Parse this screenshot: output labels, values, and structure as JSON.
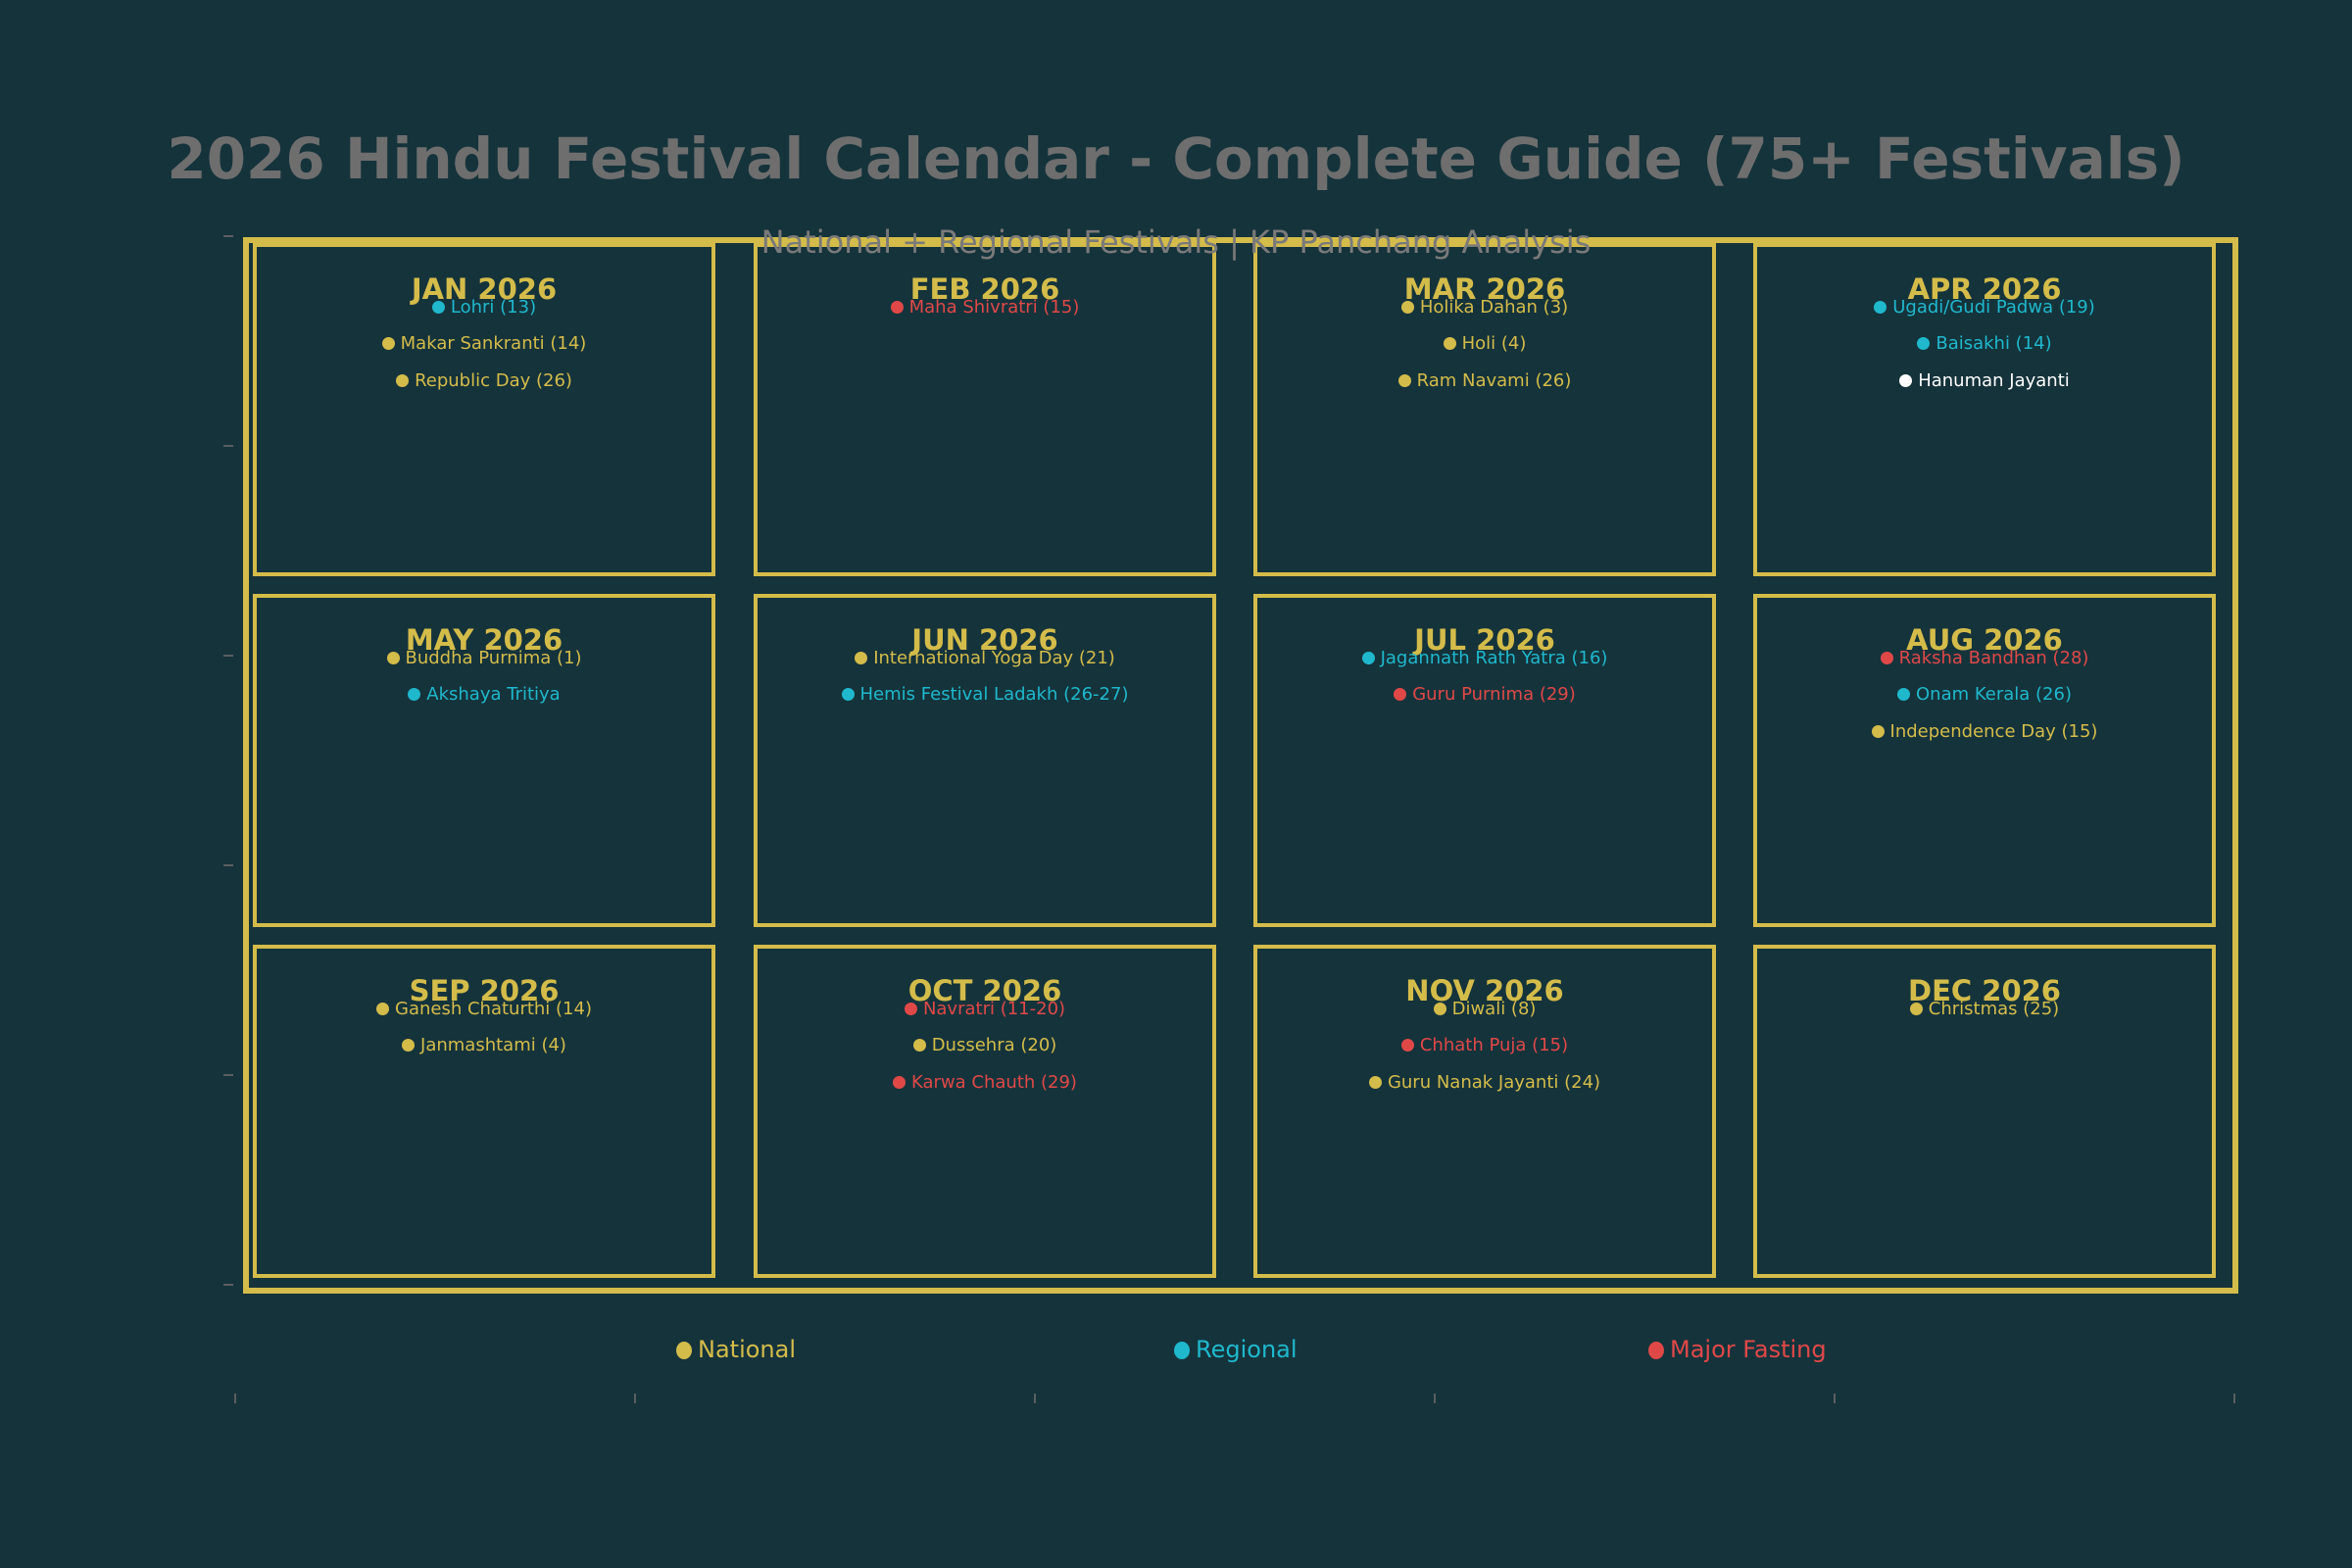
{
  "chart_data": {
    "type": "table",
    "title": "2026 Hindu Festival Calendar - Complete Guide (75+ Festivals)",
    "subtitle": "National + Regional Festivals | KP Panchang Analysis",
    "layout": {
      "rows": 3,
      "cols": 4,
      "grid": false,
      "legend_position": "bottom"
    },
    "colors": {
      "National": "#d4bc4a",
      "Regional": "#1fb8cc",
      "Major Fasting": "#e04848",
      "Other": "#ffffff"
    },
    "legend": [
      {
        "label": "National",
        "color": "#d4bc4a"
      },
      {
        "label": "Regional",
        "color": "#1fb8cc"
      },
      {
        "label": "Major Fasting",
        "color": "#e04848"
      }
    ],
    "months": [
      {
        "label": "JAN 2026",
        "festivals": [
          {
            "name": "Lohri (13)",
            "category": "Regional",
            "color": "#1fb8cc"
          },
          {
            "name": "Makar Sankranti (14)",
            "category": "National",
            "color": "#d4bc4a"
          },
          {
            "name": "Republic Day (26)",
            "category": "National",
            "color": "#d4bc4a"
          }
        ]
      },
      {
        "label": "FEB 2026",
        "festivals": [
          {
            "name": "Maha Shivratri (15)",
            "category": "Major Fasting",
            "color": "#e04848"
          }
        ]
      },
      {
        "label": "MAR 2026",
        "festivals": [
          {
            "name": "Holika Dahan (3)",
            "category": "National",
            "color": "#d4bc4a"
          },
          {
            "name": "Holi (4)",
            "category": "National",
            "color": "#d4bc4a"
          },
          {
            "name": "Ram Navami (26)",
            "category": "National",
            "color": "#d4bc4a"
          }
        ]
      },
      {
        "label": "APR 2026",
        "festivals": [
          {
            "name": "Ugadi/Gudi Padwa (19)",
            "category": "Regional",
            "color": "#1fb8cc"
          },
          {
            "name": "Baisakhi (14)",
            "category": "Regional",
            "color": "#1fb8cc"
          },
          {
            "name": "Hanuman Jayanti",
            "category": "Other",
            "color": "#ffffff"
          }
        ]
      },
      {
        "label": "MAY 2026",
        "festivals": [
          {
            "name": "Buddha Purnima (1)",
            "category": "National",
            "color": "#d4bc4a"
          },
          {
            "name": "Akshaya Tritiya",
            "category": "Regional",
            "color": "#1fb8cc"
          }
        ]
      },
      {
        "label": "JUN 2026",
        "festivals": [
          {
            "name": "International Yoga Day (21)",
            "category": "National",
            "color": "#d4bc4a"
          },
          {
            "name": "Hemis Festival Ladakh (26-27)",
            "category": "Regional",
            "color": "#1fb8cc"
          }
        ]
      },
      {
        "label": "JUL 2026",
        "festivals": [
          {
            "name": "Jagannath Rath Yatra (16)",
            "category": "Regional",
            "color": "#1fb8cc"
          },
          {
            "name": "Guru Purnima (29)",
            "category": "Major Fasting",
            "color": "#e04848"
          }
        ]
      },
      {
        "label": "AUG 2026",
        "festivals": [
          {
            "name": "Raksha Bandhan (28)",
            "category": "Major Fasting",
            "color": "#e04848"
          },
          {
            "name": "Onam Kerala (26)",
            "category": "Regional",
            "color": "#1fb8cc"
          },
          {
            "name": "Independence Day (15)",
            "category": "National",
            "color": "#d4bc4a"
          }
        ]
      },
      {
        "label": "SEP 2026",
        "festivals": [
          {
            "name": "Ganesh Chaturthi (14)",
            "category": "National",
            "color": "#d4bc4a"
          },
          {
            "name": "Janmashtami (4)",
            "category": "National",
            "color": "#d4bc4a"
          }
        ]
      },
      {
        "label": "OCT 2026",
        "festivals": [
          {
            "name": "Navratri (11-20)",
            "category": "Major Fasting",
            "color": "#e04848"
          },
          {
            "name": "Dussehra (20)",
            "category": "National",
            "color": "#d4bc4a"
          },
          {
            "name": "Karwa Chauth (29)",
            "category": "Major Fasting",
            "color": "#e04848"
          }
        ]
      },
      {
        "label": "NOV 2026",
        "festivals": [
          {
            "name": "Diwali (8)",
            "category": "National",
            "color": "#d4bc4a"
          },
          {
            "name": "Chhath Puja (15)",
            "category": "Major Fasting",
            "color": "#e04848"
          },
          {
            "name": "Guru Nanak Jayanti (24)",
            "category": "National",
            "color": "#d4bc4a"
          }
        ]
      },
      {
        "label": "DEC 2026",
        "festivals": [
          {
            "name": "Christmas (25)",
            "category": "National",
            "color": "#d4bc4a"
          }
        ]
      }
    ]
  }
}
